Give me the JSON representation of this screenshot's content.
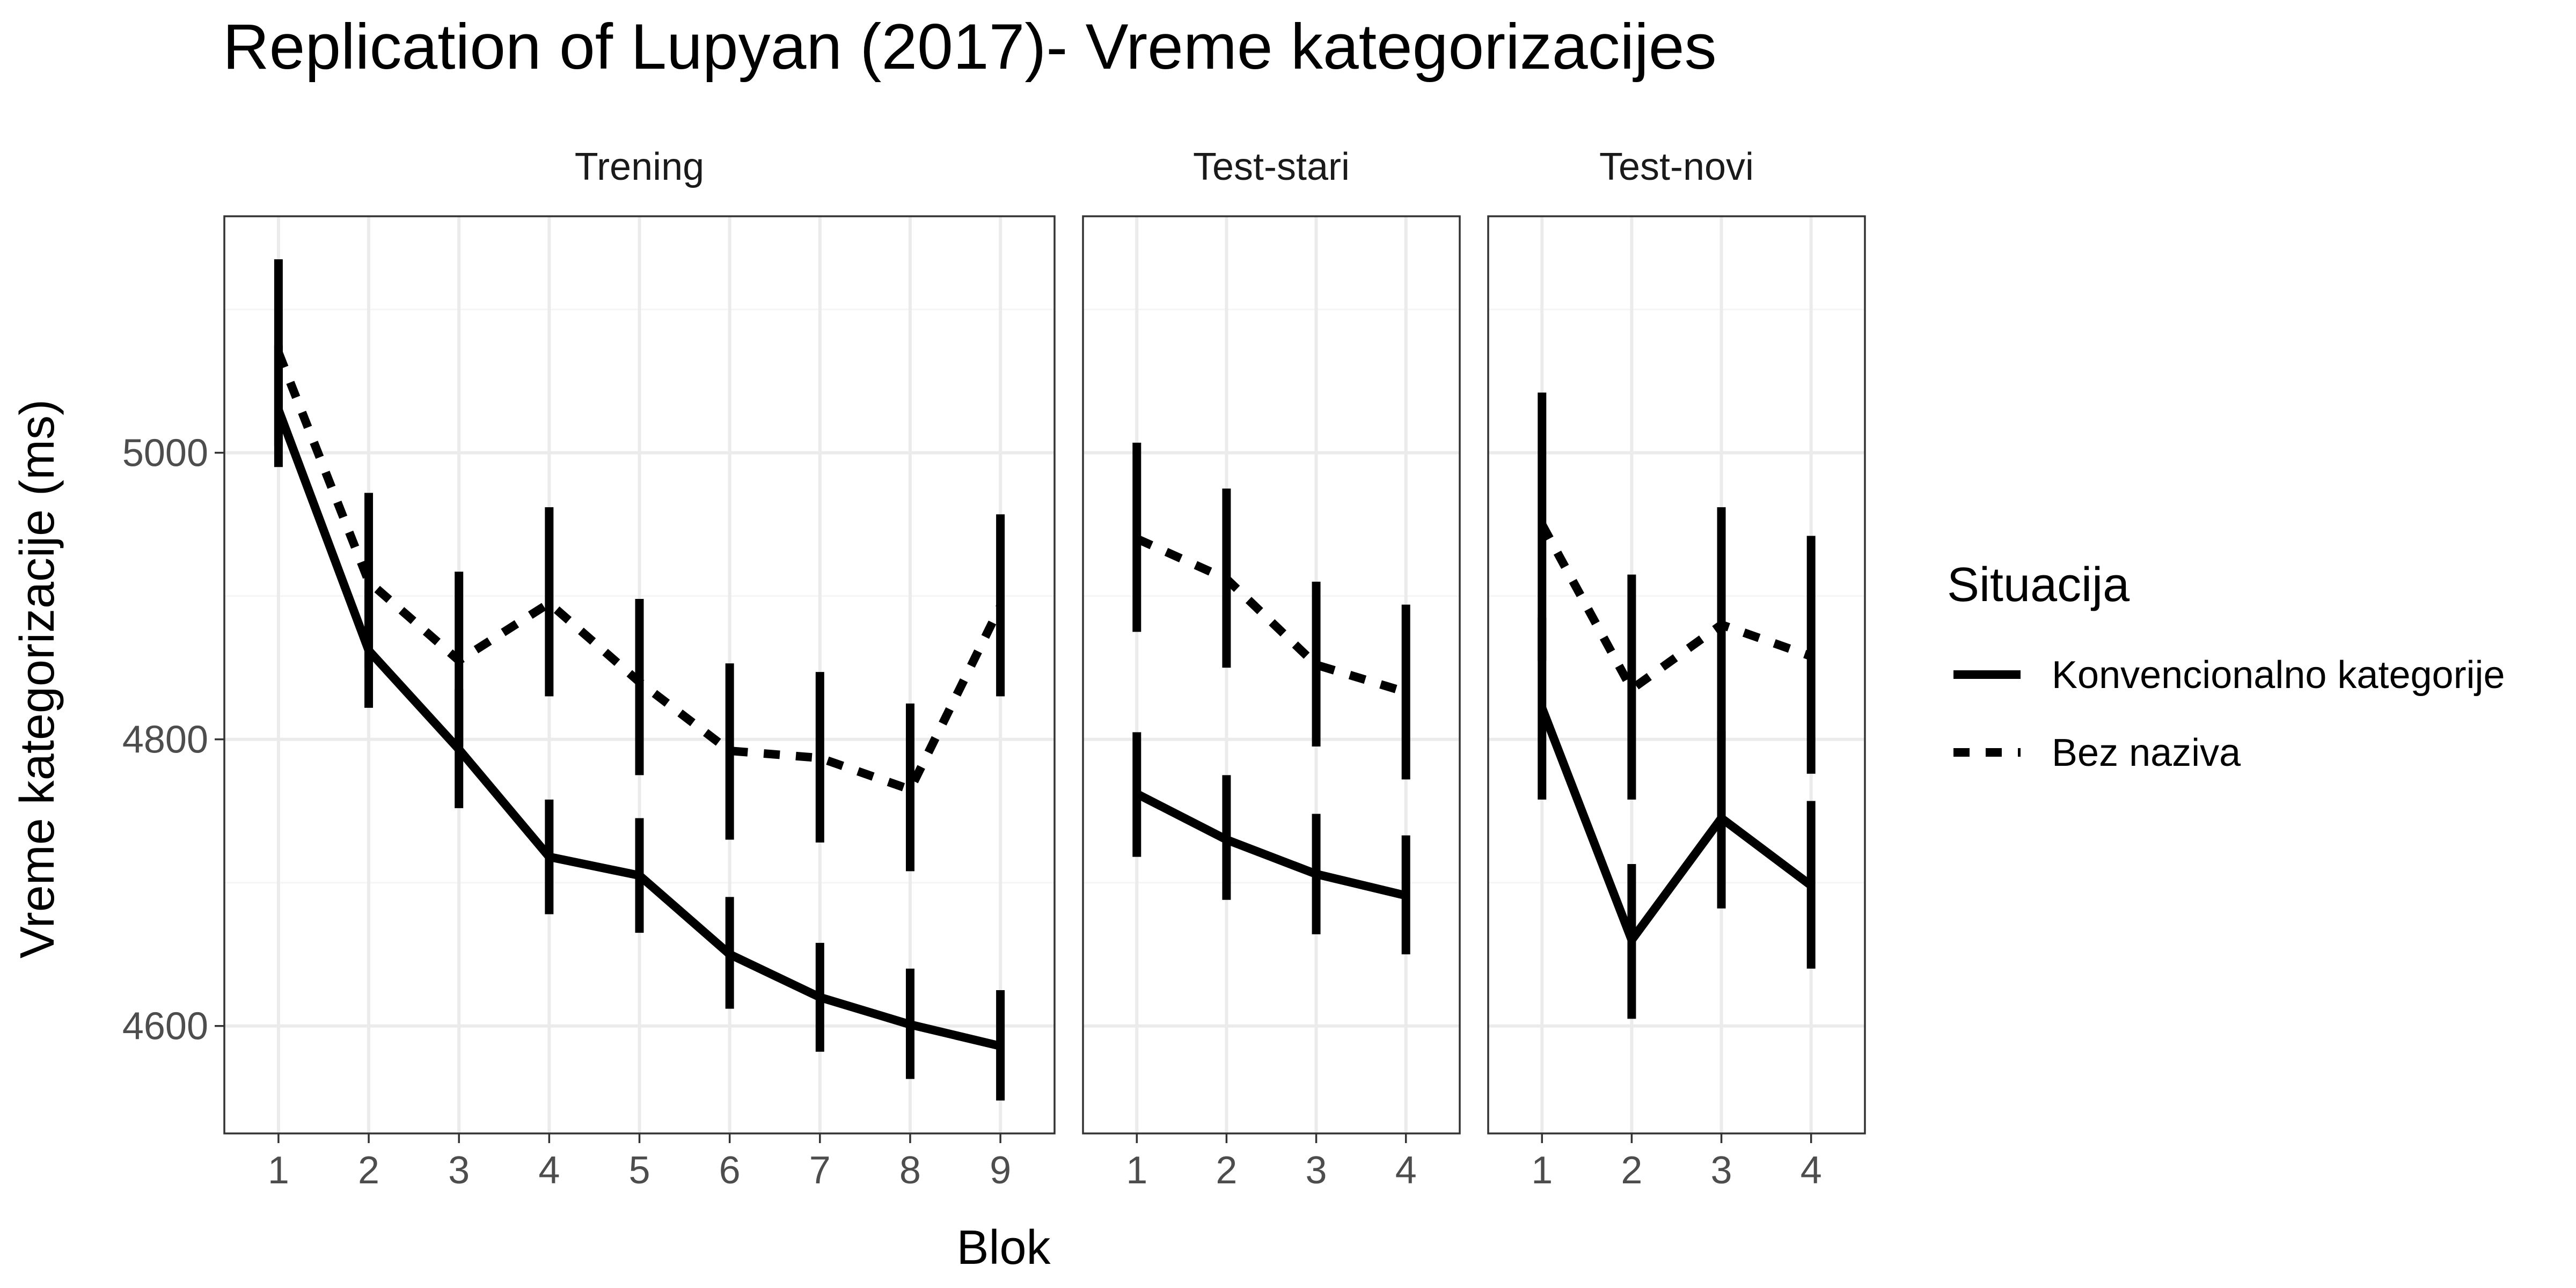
{
  "chart_data": {
    "type": "line",
    "title": "Replication of Lupyan (2017)- Vreme kategorizacijes",
    "xlabel": "Blok",
    "ylabel": "Vreme kategorizacije (ms)",
    "ylim": [
      4525,
      5165
    ],
    "yticks": [
      4600,
      4800,
      5000
    ],
    "grid": true,
    "legend": {
      "title": "Situacija",
      "position": "right",
      "entries": [
        "Konvencionalno kategorije",
        "Bez naziva"
      ]
    },
    "facets": [
      {
        "label": "Trening",
        "x": [
          1,
          2,
          3,
          4,
          5,
          6,
          7,
          8,
          9
        ],
        "series": [
          {
            "name": "Konvencionalno kategorije",
            "style": "solid",
            "values": [
              5030,
              4862,
              4793,
              4718,
              4705,
              4650,
              4620,
              4601,
              4586
            ],
            "lower": [
              4990,
              4822,
              4752,
              4678,
              4665,
              4612,
              4582,
              4563,
              4548
            ],
            "upper": [
              5075,
              4905,
              4835,
              4758,
              4745,
              4690,
              4658,
              4640,
              4625
            ]
          },
          {
            "name": "Bez naziva",
            "style": "dashed",
            "values": [
              5070,
              4910,
              4855,
              4895,
              4840,
              4792,
              4787,
              4765,
              4893
            ],
            "lower": [
              5005,
              4850,
              4795,
              4830,
              4775,
              4730,
              4728,
              4708,
              4830
            ],
            "upper": [
              5135,
              4972,
              4917,
              4962,
              4898,
              4853,
              4847,
              4825,
              4957
            ]
          }
        ]
      },
      {
        "label": "Test-stari",
        "x": [
          1,
          2,
          3,
          4
        ],
        "series": [
          {
            "name": "Konvencionalno kategorije",
            "style": "solid",
            "values": [
              4762,
              4730,
              4706,
              4691
            ],
            "lower": [
              4718,
              4688,
              4664,
              4650
            ],
            "upper": [
              4805,
              4775,
              4748,
              4733
            ]
          },
          {
            "name": "Bez naziva",
            "style": "dashed",
            "values": [
              4940,
              4912,
              4852,
              4833
            ],
            "lower": [
              4875,
              4850,
              4795,
              4772
            ],
            "upper": [
              5007,
              4975,
              4910,
              4894
            ]
          }
        ]
      },
      {
        "label": "Test-novi",
        "x": [
          1,
          2,
          3,
          4
        ],
        "series": [
          {
            "name": "Konvencionalno kategorije",
            "style": "solid",
            "values": [
              4822,
              4660,
              4745,
              4698
            ],
            "lower": [
              4758,
              4605,
              4682,
              4640
            ],
            "upper": [
              4885,
              4713,
              4806,
              4757
            ]
          },
          {
            "name": "Bez naziva",
            "style": "dashed",
            "values": [
              4950,
              4835,
              4880,
              4858
            ],
            "lower": [
              4855,
              4758,
              4800,
              4776
            ],
            "upper": [
              5042,
              4915,
              4962,
              4942
            ]
          }
        ]
      }
    ]
  }
}
